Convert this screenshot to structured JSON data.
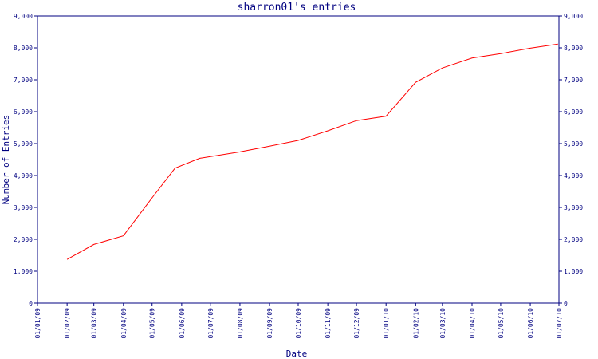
{
  "chart_data": {
    "type": "line",
    "title": "sharron01's entries",
    "xlabel": "Date",
    "ylabel": "Number of Entries",
    "x_ticks": [
      "01/01/09",
      "01/02/09",
      "01/03/09",
      "01/04/09",
      "01/05/09",
      "01/06/09",
      "01/07/09",
      "01/08/09",
      "01/09/09",
      "01/10/09",
      "01/11/09",
      "01/12/09",
      "01/01/10",
      "01/02/10",
      "01/03/10",
      "01/04/10",
      "01/05/10",
      "01/06/10",
      "01/07/10"
    ],
    "y_ticks": [
      "0",
      "1,000",
      "2,000",
      "3,000",
      "4,000",
      "5,000",
      "6,000",
      "7,000",
      "8,000",
      "9,000"
    ],
    "ylim": [
      0,
      9000
    ],
    "grid": false,
    "colors": {
      "axis": "#000080",
      "series": "#ff0000"
    },
    "series": [
      {
        "x": [
          "2009-02-01",
          "2009-03-01",
          "2009-04-01",
          "2009-05-01",
          "2009-05-25",
          "2009-06-20",
          "2009-08-01",
          "2009-09-01",
          "2009-10-01",
          "2009-11-01",
          "2009-12-01",
          "2010-01-01",
          "2010-02-01",
          "2010-03-01",
          "2010-04-01",
          "2010-05-01",
          "2010-06-01",
          "2010-06-30"
        ],
        "values": [
          1370,
          1840,
          2110,
          3300,
          4230,
          4540,
          4740,
          4920,
          5100,
          5400,
          5720,
          5860,
          6920,
          7370,
          7680,
          7820,
          7990,
          8120
        ]
      }
    ]
  }
}
